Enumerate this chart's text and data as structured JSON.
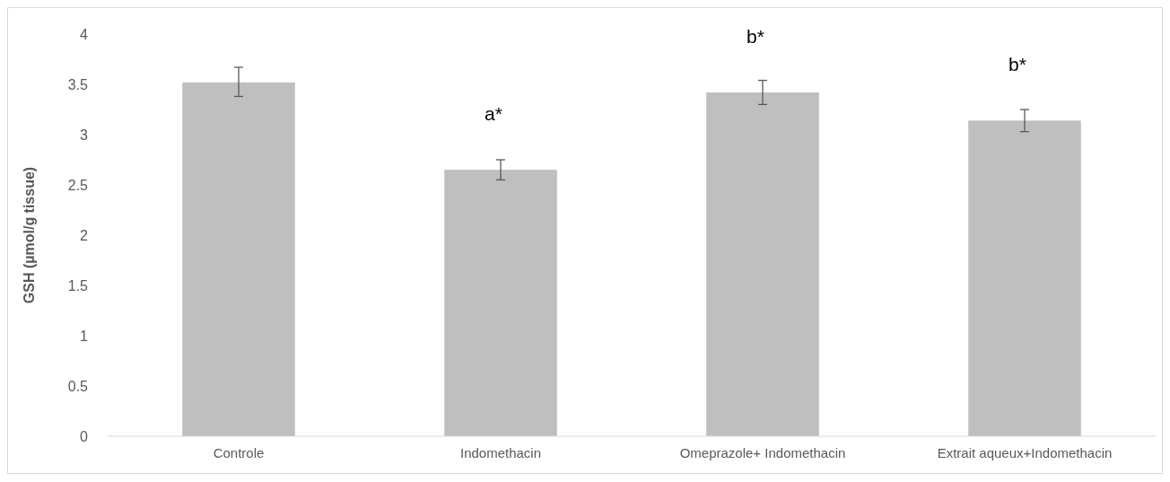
{
  "chart_data": {
    "type": "bar",
    "ylabel": "GSH (µmol/g tissue)",
    "categories": [
      "Controle",
      "Indomethacin",
      "Omeprazole+ Indomethacin",
      "Extrait aqueux+Indomethacin"
    ],
    "values": [
      3.52,
      2.65,
      3.42,
      3.14
    ],
    "errors": [
      [
        3.38,
        3.67
      ],
      [
        2.55,
        2.75
      ],
      [
        3.3,
        3.54
      ],
      0.11
    ],
    "color": "#bfbfbf",
    "ylim": [
      0,
      4
    ],
    "yticks": [
      0,
      0.5,
      1,
      1.5,
      2,
      2.5,
      3,
      3.5,
      4
    ],
    "grid": false,
    "annotations": [
      {
        "text": "a*",
        "x": "Indomethacin",
        "y": 2.65
      },
      {
        "text": "b*",
        "x": "Omeprazole+ Indomethacin",
        "y": 3.42
      },
      {
        "text": "b*",
        "x": "Extrait aqueux+Indomethacin",
        "y": 3.14
      }
    ]
  }
}
